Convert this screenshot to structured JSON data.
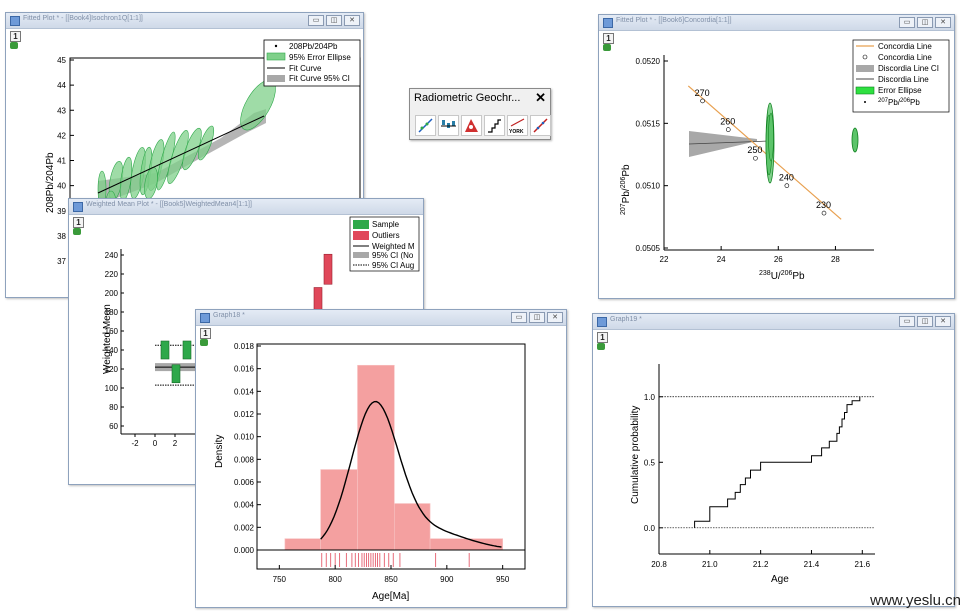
{
  "windows": {
    "fitted_left": {
      "title": "Fitted Plot * - [[Book4]Isochron1Q[1:1]]",
      "layer": "1",
      "ylabel": "208Pb/204Pb",
      "yticks": [
        "45",
        "44",
        "43",
        "42",
        "41",
        "40",
        "39",
        "38",
        "37"
      ],
      "legend": [
        "208Pb/204Pb",
        "95% Error Ellipse",
        "Fit Curve",
        "Fit Curve 95% CI"
      ]
    },
    "weighted_mean": {
      "title": "Weighted Mean Plot * - [[Book5]WeightedMean4[1:1]]",
      "layer": "1",
      "ylabel": "Weighted Mean",
      "yticks": [
        "240",
        "220",
        "200",
        "180",
        "160",
        "140",
        "120",
        "100",
        "80",
        "60"
      ],
      "xticks": [
        "-2",
        "0",
        "2"
      ],
      "legend": [
        "Sample",
        "Outliers",
        "Weighted M",
        "95% CI (No",
        "95% CI Aug"
      ]
    },
    "graph18": {
      "title": "Graph18 *",
      "layer": "1",
      "xlabel": "Age[Ma]",
      "ylabel": "Density",
      "yticks": [
        "0.018",
        "0.016",
        "0.014",
        "0.012",
        "0.010",
        "0.008",
        "0.006",
        "0.004",
        "0.002",
        "0.000"
      ],
      "xticks": [
        "750",
        "800",
        "850",
        "900",
        "950"
      ]
    },
    "concordia": {
      "title": "Fitted Plot * - [[Book6]Concordia[1:1]]",
      "layer": "1",
      "ylabel_main": "Pb/",
      "ylabel_sup1": "207",
      "ylabel_sup2": "206",
      "ylabel_tail": "Pb",
      "xlabel_main": "U/",
      "xlabel_sup1": "238",
      "xlabel_sup2": "206",
      "xlabel_tail": "Pb",
      "yticks": [
        "0.0520",
        "0.0515",
        "0.0510",
        "0.0505"
      ],
      "xticks": [
        "22",
        "24",
        "26",
        "28"
      ],
      "age_labels": [
        "270",
        "260",
        "250",
        "240",
        "230"
      ],
      "legend": [
        "Concordia Line",
        "Concordia Line",
        "Discordia Line CI",
        "Discordia Line",
        "Error Ellipse",
        "Pb/",
        "207",
        "206",
        "Pb"
      ]
    },
    "graph19": {
      "title": "Graph19 *",
      "layer": "1",
      "xlabel": "Age",
      "ylabel": "Cumulative probability",
      "yticks": [
        "1.0",
        "0.5",
        "0.0"
      ],
      "xticks": [
        "20.8",
        "21.0",
        "21.2",
        "21.4",
        "21.6"
      ]
    }
  },
  "toolbar": {
    "title": "Radiometric Geochr...",
    "close": "✕",
    "icons": [
      "isochron-icon",
      "weighted-mean-icon",
      "concordia-icon",
      "cumulative-icon",
      "york-icon",
      "kde-icon"
    ],
    "york_label": "YORK"
  },
  "window_buttons": {
    "minimize": "▭",
    "restore": "◫",
    "close": "✕"
  },
  "watermark": "www.yeslu.cn",
  "colors": {
    "green": "#2ea84a",
    "green_light": "#7fd08a",
    "red": "#e0485a",
    "salmon": "#f4a0a0",
    "grey_band": "#a8a8a8",
    "orange": "#e8a050"
  },
  "chart_data": [
    {
      "type": "scatter",
      "panel": "isochron",
      "ylabel": "208Pb/204Pb",
      "ylim": [
        37,
        45
      ],
      "fit_line": {
        "y_start": 39.9,
        "y_end": 42.6
      },
      "legend_placement": "top-right"
    },
    {
      "type": "bar",
      "panel": "weighted_mean",
      "ylabel": "Weighted Mean",
      "ylim": [
        60,
        240
      ],
      "samples": [
        {
          "x": 1,
          "value": 140
        },
        {
          "x": 2,
          "value": 115
        },
        {
          "x": 3,
          "value": 140
        }
      ],
      "outliers": [
        {
          "value": 190
        },
        {
          "value": 225
        }
      ],
      "weighted_mean": 122
    },
    {
      "type": "bar",
      "panel": "density_histogram",
      "xlabel": "Age[Ma]",
      "ylabel": "Density",
      "xlim": [
        730,
        970
      ],
      "ylim": [
        0,
        0.018
      ],
      "bins": [
        {
          "start": 755,
          "end": 787,
          "density": 0.001
        },
        {
          "start": 787,
          "end": 820,
          "density": 0.0071
        },
        {
          "start": 820,
          "end": 853,
          "density": 0.0163
        },
        {
          "start": 853,
          "end": 885,
          "density": 0.0041
        },
        {
          "start": 885,
          "end": 950,
          "density": 0.001
        }
      ],
      "kde_peak": {
        "x": 835,
        "y": 0.0129
      },
      "rug": [
        788,
        792,
        796,
        800,
        804,
        810,
        815,
        818,
        821,
        824,
        826,
        828,
        830,
        832,
        834,
        836,
        838,
        840,
        844,
        848,
        852,
        858,
        890,
        920
      ]
    },
    {
      "type": "scatter",
      "panel": "concordia",
      "xlim": [
        22,
        29
      ],
      "ylim": [
        0.0505,
        0.052
      ],
      "concordia_points": [
        {
          "age": "270",
          "x": 23.35,
          "y": 0.05168
        },
        {
          "age": "260",
          "x": 24.25,
          "y": 0.05145
        },
        {
          "age": "250",
          "x": 25.2,
          "y": 0.05122
        },
        {
          "age": "240",
          "x": 26.3,
          "y": 0.051
        },
        {
          "age": "230",
          "x": 27.6,
          "y": 0.05078
        }
      ],
      "legend_placement": "top-right"
    },
    {
      "type": "line",
      "panel": "cumulative",
      "xlabel": "Age",
      "ylabel": "Cumulative probability",
      "xlim": [
        20.8,
        21.65
      ],
      "ylim": [
        -0.2,
        1.25
      ],
      "steps": [
        [
          20.94,
          0.0
        ],
        [
          20.94,
          0.05
        ],
        [
          21.0,
          0.05
        ],
        [
          21.0,
          0.16
        ],
        [
          21.07,
          0.16
        ],
        [
          21.07,
          0.22
        ],
        [
          21.1,
          0.22
        ],
        [
          21.1,
          0.27
        ],
        [
          21.12,
          0.27
        ],
        [
          21.12,
          0.33
        ],
        [
          21.14,
          0.33
        ],
        [
          21.14,
          0.38
        ],
        [
          21.16,
          0.38
        ],
        [
          21.16,
          0.44
        ],
        [
          21.2,
          0.44
        ],
        [
          21.2,
          0.5
        ],
        [
          21.4,
          0.5
        ],
        [
          21.4,
          0.55
        ],
        [
          21.44,
          0.55
        ],
        [
          21.44,
          0.61
        ],
        [
          21.47,
          0.61
        ],
        [
          21.47,
          0.66
        ],
        [
          21.5,
          0.66
        ],
        [
          21.5,
          0.72
        ],
        [
          21.51,
          0.72
        ],
        [
          21.51,
          0.77
        ],
        [
          21.52,
          0.77
        ],
        [
          21.52,
          0.83
        ],
        [
          21.53,
          0.83
        ],
        [
          21.53,
          0.88
        ],
        [
          21.54,
          0.88
        ],
        [
          21.54,
          0.94
        ],
        [
          21.56,
          0.94
        ],
        [
          21.56,
          0.97
        ],
        [
          21.59,
          0.97
        ],
        [
          21.59,
          1.0
        ]
      ],
      "ref_lines": [
        0.0,
        1.0
      ]
    }
  ]
}
